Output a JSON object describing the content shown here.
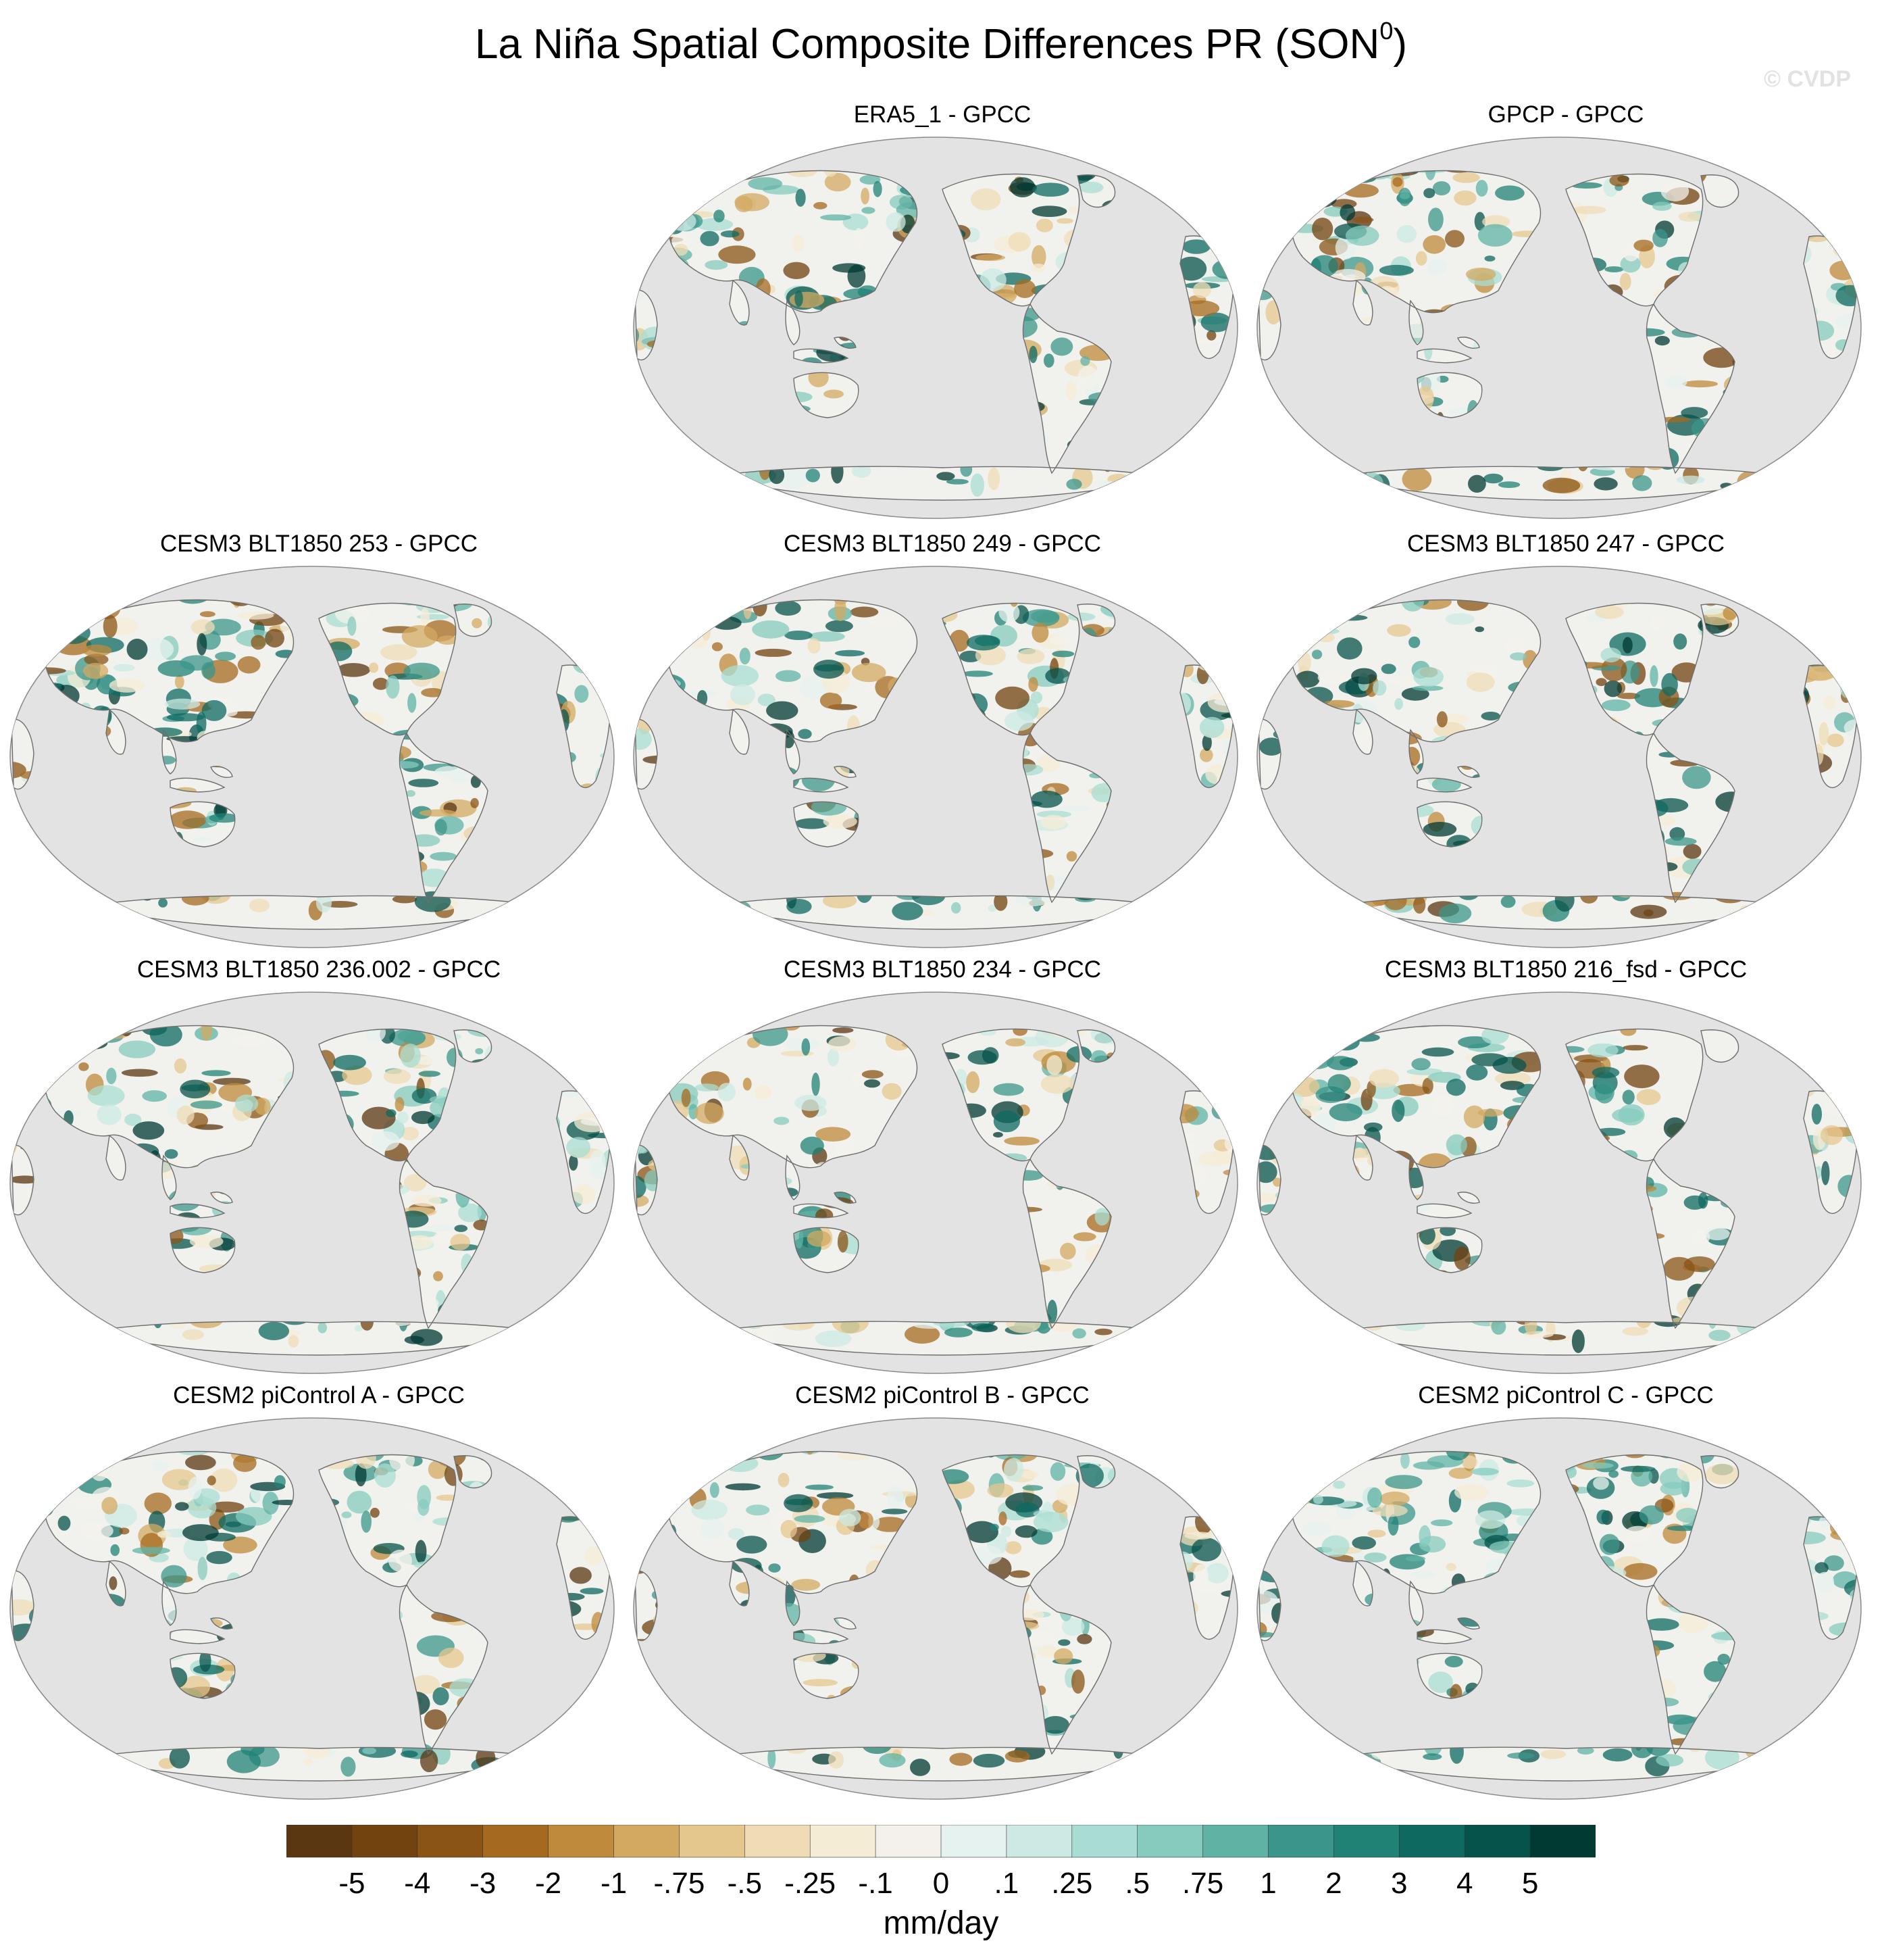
{
  "figure": {
    "title": "La Niña Spatial Composite Differences PR (SON",
    "title_sup": "0",
    "title_close": ")",
    "watermark": "© CVDP"
  },
  "panels": [
    {
      "id": "era5",
      "title": "ERA5_1 - GPCC"
    },
    {
      "id": "gpcp",
      "title": "GPCP - GPCC"
    },
    {
      "id": "m253",
      "title": "CESM3 BLT1850 253 - GPCC"
    },
    {
      "id": "m249",
      "title": "CESM3 BLT1850 249 - GPCC"
    },
    {
      "id": "m247",
      "title": "CESM3 BLT1850 247 - GPCC"
    },
    {
      "id": "m236",
      "title": "CESM3 BLT1850 236.002 - GPCC"
    },
    {
      "id": "m234",
      "title": "CESM3 BLT1850 234 - GPCC"
    },
    {
      "id": "m216",
      "title": "CESM3 BLT1850 216_fsd - GPCC"
    },
    {
      "id": "picA",
      "title": "CESM2 piControl A - GPCC"
    },
    {
      "id": "picB",
      "title": "CESM2 piControl B - GPCC"
    },
    {
      "id": "picC",
      "title": "CESM2 piControl C - GPCC"
    }
  ],
  "colorbar": {
    "unit": "mm/day",
    "levels": [
      "-5",
      "-4",
      "-3",
      "-2",
      "-1",
      "-.75",
      "-.5",
      "-.25",
      "-.1",
      "0",
      ".1",
      ".25",
      ".5",
      ".75",
      "1",
      "2",
      "3",
      "4",
      "5"
    ],
    "colors": [
      "#5a3611",
      "#72420f",
      "#8a5414",
      "#a56a1f",
      "#bf8a3b",
      "#d3a961",
      "#e4c78d",
      "#efdcb5",
      "#f5ecd6",
      "#f4f1ec",
      "#e6f2ef",
      "#cceae3",
      "#a9ddd3",
      "#86cbbd",
      "#5fb3a4",
      "#3b958a",
      "#208175",
      "#0e6a60",
      "#06534b",
      "#003a33"
    ]
  }
}
